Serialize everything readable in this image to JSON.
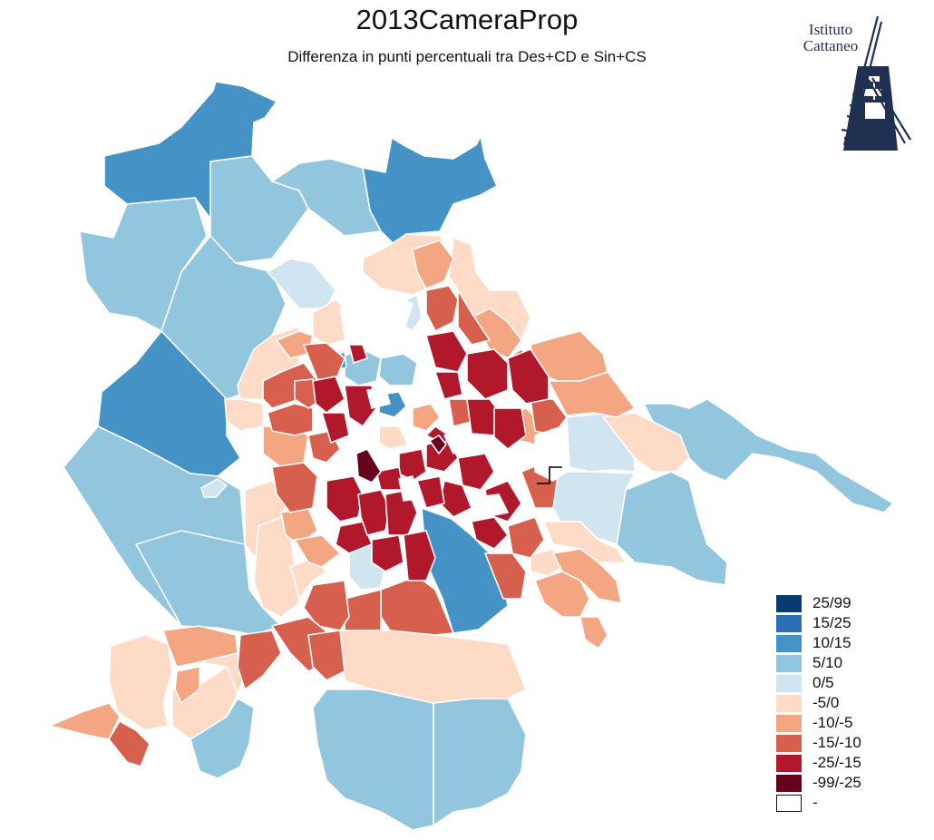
{
  "header": {
    "title": "2013CameraProp",
    "subtitle": "Differenza in punti percentuali tra Des+CD e Sin+CS"
  },
  "logo": {
    "line1": "Istituto",
    "line2": "Cattaneo"
  },
  "colors": {
    "c25_99": "#0b3a70",
    "c15_25": "#2a6fb3",
    "c10_15": "#4593c6",
    "c5_10": "#92c5de",
    "c0_5": "#d1e5f0",
    "cm5_0": "#fddbc7",
    "cm10_m5": "#f4a582",
    "cm15_m10": "#d6604d",
    "cm25_m15": "#b2182b",
    "cm99_m25": "#67001f",
    "none": "#ffffff"
  },
  "legend": {
    "items": [
      {
        "label": "25/99",
        "color": "#0b3a70"
      },
      {
        "label": "15/25",
        "color": "#2a6fb3"
      },
      {
        "label": "10/15",
        "color": "#4593c6"
      },
      {
        "label": "5/10",
        "color": "#92c5de"
      },
      {
        "label": "0/5",
        "color": "#d1e5f0"
      },
      {
        "label": "-5/0",
        "color": "#fddbc7"
      },
      {
        "label": "-10/-5",
        "color": "#f4a582"
      },
      {
        "label": "-15/-10",
        "color": "#d6604d"
      },
      {
        "label": "-25/-15",
        "color": "#b2182b"
      },
      {
        "label": "-99/-25",
        "color": "#67001f"
      },
      {
        "label": "-",
        "color": "#ffffff"
      }
    ]
  }
}
